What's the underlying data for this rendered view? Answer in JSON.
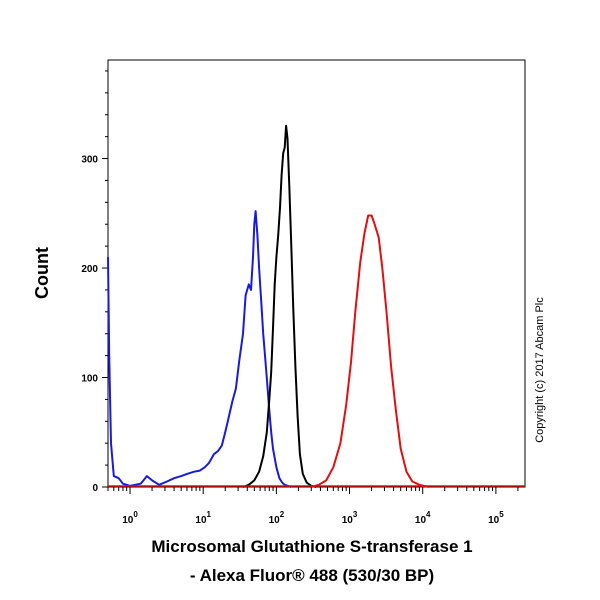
{
  "chart_data": {
    "type": "line",
    "title": "",
    "xlabel_line1": "Microsomal Glutathione S-transferase 1",
    "xlabel_line2": "- Alexa Fluor® 488 (530/30 BP)",
    "ylabel": "Count",
    "x_scale": "log",
    "xlim": [
      0.5,
      250000
    ],
    "ylim": [
      0,
      390
    ],
    "x_ticks": [
      {
        "value": 1,
        "base": "10",
        "exp": "0"
      },
      {
        "value": 10,
        "base": "10",
        "exp": "1"
      },
      {
        "value": 100,
        "base": "10",
        "exp": "2"
      },
      {
        "value": 1000,
        "base": "10",
        "exp": "3"
      },
      {
        "value": 10000,
        "base": "10",
        "exp": "4"
      },
      {
        "value": 100000,
        "base": "10",
        "exp": "5"
      }
    ],
    "y_ticks": [
      0,
      100,
      200,
      300
    ],
    "grid": false,
    "legend": "none",
    "series": [
      {
        "color": "#1a1adc",
        "x": [
          0.5,
          0.52,
          0.55,
          0.6,
          0.7,
          0.8,
          1.0,
          1.4,
          1.7,
          2.0,
          2.5,
          3.2,
          4.0,
          5.0,
          6.0,
          7.5,
          9.0,
          10.5,
          12,
          14,
          16,
          18,
          20,
          22,
          25,
          28,
          31,
          35,
          38,
          42,
          45,
          48,
          50,
          52,
          55,
          58,
          62,
          66,
          70,
          75,
          80,
          85,
          90,
          100,
          110,
          120,
          130,
          145,
          160
        ],
        "y": [
          210,
          120,
          40,
          10,
          8,
          3,
          1,
          3,
          10,
          6,
          2,
          5,
          8,
          10,
          12,
          14,
          15,
          18,
          22,
          30,
          33,
          38,
          50,
          62,
          78,
          90,
          115,
          140,
          175,
          185,
          180,
          210,
          240,
          252,
          230,
          200,
          170,
          140,
          120,
          95,
          70,
          50,
          35,
          18,
          8,
          4,
          2,
          1,
          0
        ]
      },
      {
        "color": "#000000",
        "x": [
          35,
          42,
          50,
          58,
          66,
          74,
          80,
          85,
          90,
          95,
          100,
          106,
          112,
          118,
          124,
          130,
          136,
          142,
          150,
          160,
          170,
          182,
          195,
          210,
          230,
          260,
          300,
          350
        ],
        "y": [
          0,
          2,
          6,
          14,
          28,
          50,
          80,
          105,
          145,
          185,
          210,
          230,
          255,
          285,
          305,
          310,
          330,
          318,
          275,
          220,
          165,
          110,
          65,
          30,
          12,
          4,
          1,
          0
        ]
      },
      {
        "color": "#e01010",
        "x": [
          300,
          380,
          480,
          600,
          750,
          900,
          1050,
          1200,
          1400,
          1600,
          1800,
          2000,
          2200,
          2500,
          2800,
          3200,
          3700,
          4300,
          5000,
          6000,
          7200,
          9000,
          12000
        ],
        "y": [
          0,
          2,
          6,
          18,
          40,
          75,
          115,
          160,
          205,
          232,
          248,
          248,
          240,
          228,
          200,
          160,
          110,
          70,
          35,
          14,
          5,
          2,
          0
        ]
      }
    ]
  },
  "copyright": "Copyright (c) 2017 Abcam Plc"
}
